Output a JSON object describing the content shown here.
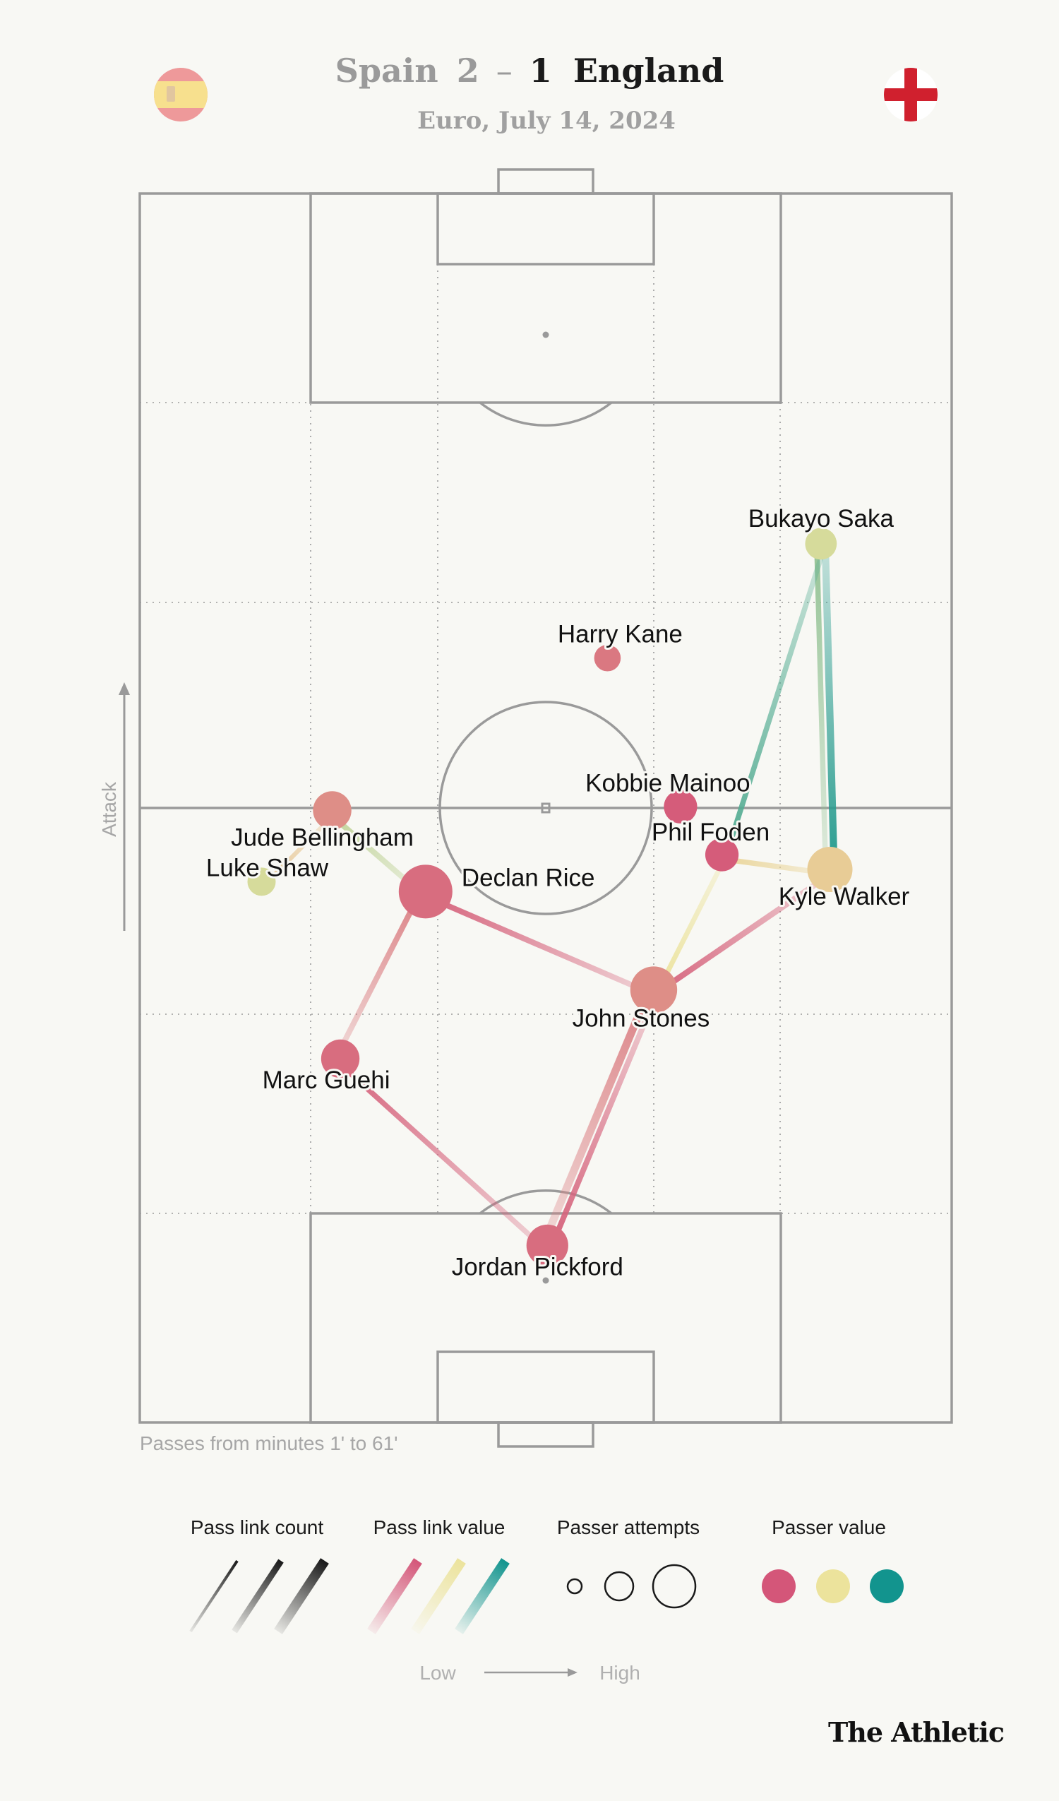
{
  "header": {
    "home_team": "Spain",
    "home_score": "2",
    "separator": "–",
    "away_score": "1",
    "away_team": "England",
    "subtitle": "Euro, July 14, 2024",
    "home_flag_icon": "spain-flag-icon",
    "away_flag_icon": "england-flag-icon"
  },
  "pitch": {
    "attack_label": "Attack",
    "footnote": "Passes from minutes 1' to 61'"
  },
  "chart_data": {
    "type": "network",
    "team": "England",
    "players": [
      {
        "id": "saka",
        "name": "Bukayo Saka",
        "x": 0.839,
        "y": 0.285,
        "attempts": 0.35,
        "value": 0.55
      },
      {
        "id": "kane",
        "name": "Harry Kane",
        "x": 0.576,
        "y": 0.378,
        "attempts": 0.2,
        "value": 0.12
      },
      {
        "id": "mainoo",
        "name": "Kobbie Mainoo",
        "x": 0.666,
        "y": 0.499,
        "attempts": 0.4,
        "value": 0.02
      },
      {
        "id": "foden",
        "name": "Phil Foden",
        "x": 0.717,
        "y": 0.538,
        "attempts": 0.4,
        "value": 0.02
      },
      {
        "id": "bellingham",
        "name": "Jude Bellingham",
        "x": 0.237,
        "y": 0.502,
        "attempts": 0.55,
        "value": 0.2
      },
      {
        "id": "shaw",
        "name": "Luke Shaw",
        "x": 0.15,
        "y": 0.56,
        "attempts": 0.25,
        "value": 0.55
      },
      {
        "id": "walker",
        "name": "Kyle Walker",
        "x": 0.85,
        "y": 0.55,
        "attempts": 0.75,
        "value": 0.42
      },
      {
        "id": "rice",
        "name": "Declan Rice",
        "x": 0.352,
        "y": 0.568,
        "attempts": 1.0,
        "value": 0.08
      },
      {
        "id": "stones",
        "name": "John Stones",
        "x": 0.633,
        "y": 0.648,
        "attempts": 0.8,
        "value": 0.2
      },
      {
        "id": "guehi",
        "name": "Marc Guehi",
        "x": 0.247,
        "y": 0.704,
        "attempts": 0.55,
        "value": 0.08
      },
      {
        "id": "pickford",
        "name": "Jordan Pickford",
        "x": 0.502,
        "y": 0.856,
        "attempts": 0.65,
        "value": 0.08
      }
    ],
    "links": [
      {
        "from": "walker",
        "to": "saka",
        "count": 0.8,
        "value": 0.95
      },
      {
        "from": "saka",
        "to": "walker",
        "count": 0.5,
        "value": 0.7
      },
      {
        "from": "foden",
        "to": "saka",
        "count": 0.5,
        "value": 0.85
      },
      {
        "from": "stones",
        "to": "pickford",
        "count": 0.9,
        "value": 0.15
      },
      {
        "from": "pickford",
        "to": "stones",
        "count": 0.55,
        "value": 0.05
      },
      {
        "from": "rice",
        "to": "stones",
        "count": 0.55,
        "value": 0.05
      },
      {
        "from": "stones",
        "to": "walker",
        "count": 0.6,
        "value": 0.05
      },
      {
        "from": "guehi",
        "to": "pickford",
        "count": 0.5,
        "value": 0.05
      },
      {
        "from": "rice",
        "to": "guehi",
        "count": 0.55,
        "value": 0.15
      },
      {
        "from": "bellingham",
        "to": "rice",
        "count": 0.55,
        "value": 0.6
      },
      {
        "from": "stones",
        "to": "foden",
        "count": 0.45,
        "value": 0.5
      },
      {
        "from": "foden",
        "to": "walker",
        "count": 0.5,
        "value": 0.45
      },
      {
        "from": "shaw",
        "to": "bellingham",
        "count": 0.35,
        "value": 0.4
      }
    ]
  },
  "legend": {
    "count_title": "Pass link count",
    "value_title": "Pass link value",
    "attempts_title": "Passer attempts",
    "passer_value_title": "Passer value",
    "low": "Low",
    "high": "High",
    "colors": {
      "low": "#d45679",
      "mid": "#ece39c",
      "high": "#12948e"
    }
  },
  "brand": "The Athletic"
}
